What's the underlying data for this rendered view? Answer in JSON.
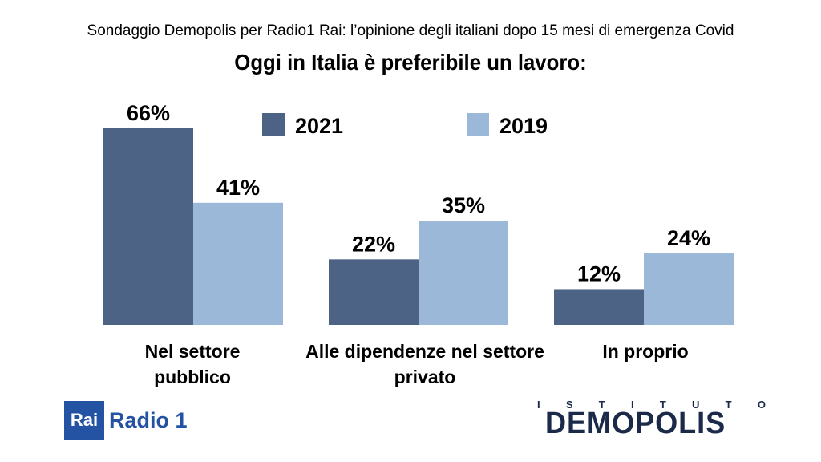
{
  "header": {
    "subtitle": "Sondaggio Demopolis per Radio1 Rai: l’opinione degli italiani dopo 15 mesi di emergenza Covid",
    "title": "Oggi in Italia è preferibile un lavoro:"
  },
  "chart_data": {
    "type": "bar",
    "categories": [
      "Nel settore pubblico",
      "Alle dipendenze nel settore privato",
      "In proprio"
    ],
    "category_lines": [
      [
        "Nel settore",
        "pubblico"
      ],
      [
        "Alle dipendenze nel settore",
        "privato"
      ],
      [
        "In proprio"
      ]
    ],
    "series": [
      {
        "name": "2021",
        "values": [
          66,
          22,
          12
        ],
        "labels": [
          "66%",
          "22%",
          "12%"
        ],
        "color": "#4d6386"
      },
      {
        "name": "2019",
        "values": [
          41,
          35,
          24
        ],
        "labels": [
          "41%",
          "35%",
          "24%"
        ],
        "color": "#9bb8d8"
      }
    ],
    "ylim": [
      0,
      66
    ],
    "grid": false,
    "legend_position": "top-center"
  },
  "logos": {
    "rai_box": "Rai",
    "rai_radio": "Radio 1",
    "istituto": [
      "I",
      "S",
      "T",
      "I",
      "T",
      "U",
      "T",
      "O"
    ],
    "demopolis": "DEMOPOLIS",
    "demopolis_colors": {
      "text": "#1c2a4a",
      "accent": "#e07a1f"
    }
  }
}
